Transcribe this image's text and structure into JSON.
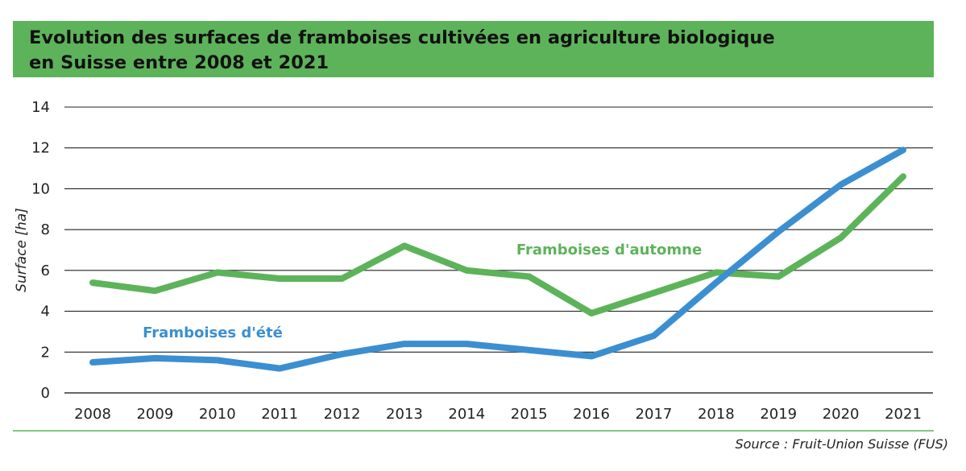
{
  "header": {
    "title_line1": "Evolution des surfaces de framboises cultivées en agriculture biologique",
    "title_line2": "en Suisse entre 2008 et 2021",
    "background": "#5db35a"
  },
  "source": "Source : Fruit-Union Suisse (FUS)",
  "chart_data": {
    "type": "line",
    "title": "Evolution des surfaces de framboises cultivées en agriculture biologique en Suisse entre 2008 et 2021",
    "xlabel": "",
    "ylabel": "Surface [ha]",
    "x": [
      "2008",
      "2009",
      "2010",
      "2011",
      "2012",
      "2013",
      "2014",
      "2015",
      "2016",
      "2017",
      "2018",
      "2019",
      "2020",
      "2021"
    ],
    "ylim": [
      0,
      14
    ],
    "yticks": [
      "0",
      "2",
      "4",
      "6",
      "8",
      "10",
      "12",
      "14"
    ],
    "grid": "horizontal",
    "series": [
      {
        "name": "Framboises d'automne",
        "color": "#5db35a",
        "values": [
          5.4,
          5.0,
          5.9,
          5.6,
          5.6,
          7.2,
          6.0,
          5.7,
          3.9,
          4.9,
          5.9,
          5.7,
          7.6,
          10.6
        ]
      },
      {
        "name": "Framboises d'été",
        "color": "#3b8fd0",
        "values": [
          1.5,
          1.7,
          1.6,
          1.2,
          1.9,
          2.4,
          2.4,
          2.1,
          1.8,
          2.8,
          5.4,
          7.9,
          10.2,
          11.9
        ]
      }
    ]
  }
}
